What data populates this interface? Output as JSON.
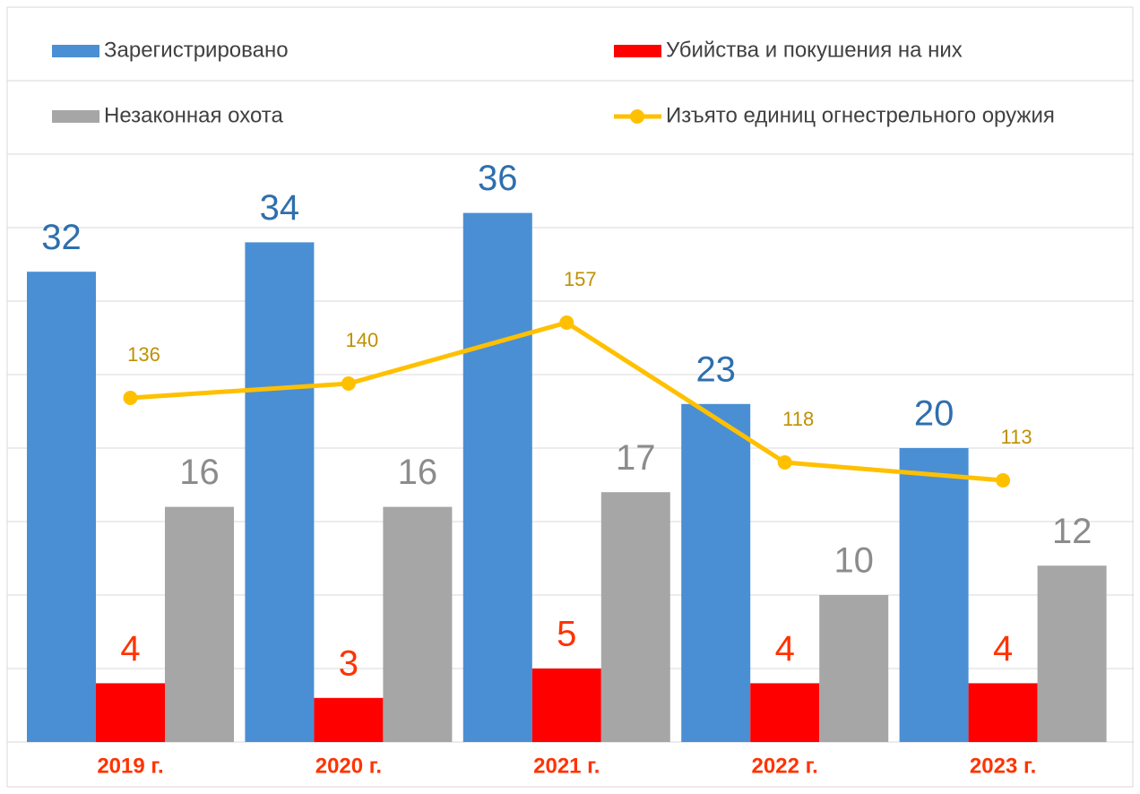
{
  "chart_data": {
    "type": "bar",
    "categories": [
      "2019 г.",
      "2020 г.",
      "2021 г.",
      "2022 г.",
      "2023 г."
    ],
    "series": [
      {
        "name": "Зарегистрировано",
        "color": "#4a8fd4",
        "label_color": "#2e6fae",
        "values": [
          32,
          34,
          36,
          23,
          20
        ]
      },
      {
        "name": "Убийства и покушения на них",
        "color": "#ff0000",
        "label_color": "#ff3300",
        "values": [
          4,
          3,
          5,
          4,
          4
        ]
      },
      {
        "name": "Незаконная охота",
        "color": "#a6a6a6",
        "label_color": "#8c8c8c",
        "values": [
          16,
          16,
          17,
          10,
          12
        ]
      },
      {
        "name": "Изъято единиц огнестрельного оружия",
        "color": "#ffc000",
        "label_color": "#bf9000",
        "type": "line",
        "axis": "y2",
        "values": [
          136,
          140,
          157,
          118,
          113
        ]
      }
    ],
    "ylim": [
      0,
      50
    ],
    "yticks": [
      0,
      5,
      10,
      15,
      20,
      25,
      30,
      35,
      40,
      45
    ],
    "y2lim": [
      40,
      245
    ],
    "grid": true,
    "category_color": "#ff3300"
  }
}
